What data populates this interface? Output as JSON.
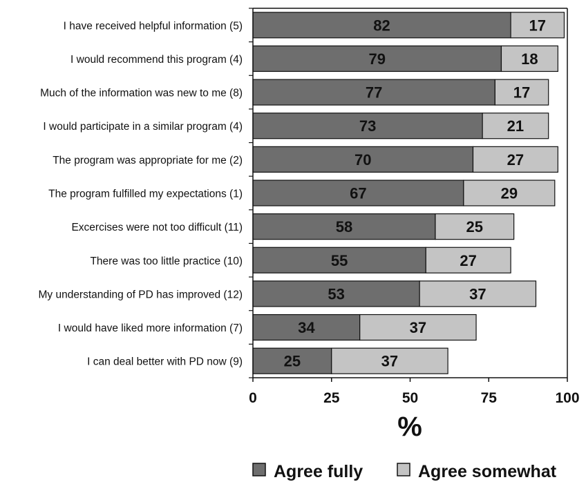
{
  "chart_data": {
    "type": "bar",
    "orientation": "horizontal",
    "stacked": true,
    "categories": [
      "I have received helpful information (5)",
      "I would recommend this program (4)",
      "Much of the information was new to me (8)",
      "I would participate in a similar program (4)",
      "The program was appropriate for me (2)",
      "The program fulfilled my expectations (1)",
      "Excercises were not too difficult (11)",
      "There was too little practice (10)",
      "My understanding of PD has improved (12)",
      "I would have liked more information (7)",
      "I can deal better with PD now (9)"
    ],
    "series": [
      {
        "name": "Agree fully",
        "color": "#6e6e6e",
        "values": [
          82,
          79,
          77,
          73,
          70,
          67,
          58,
          55,
          53,
          34,
          25
        ]
      },
      {
        "name": "Agree somewhat",
        "color": "#c4c4c4",
        "values": [
          17,
          18,
          17,
          21,
          27,
          29,
          25,
          27,
          37,
          37,
          37
        ]
      }
    ],
    "xlabel": "%",
    "ylabel": "",
    "xlim": [
      0,
      100
    ],
    "xticks": [
      "0",
      "25",
      "50",
      "75",
      "100"
    ],
    "grid": false,
    "legend_position": "bottom"
  }
}
